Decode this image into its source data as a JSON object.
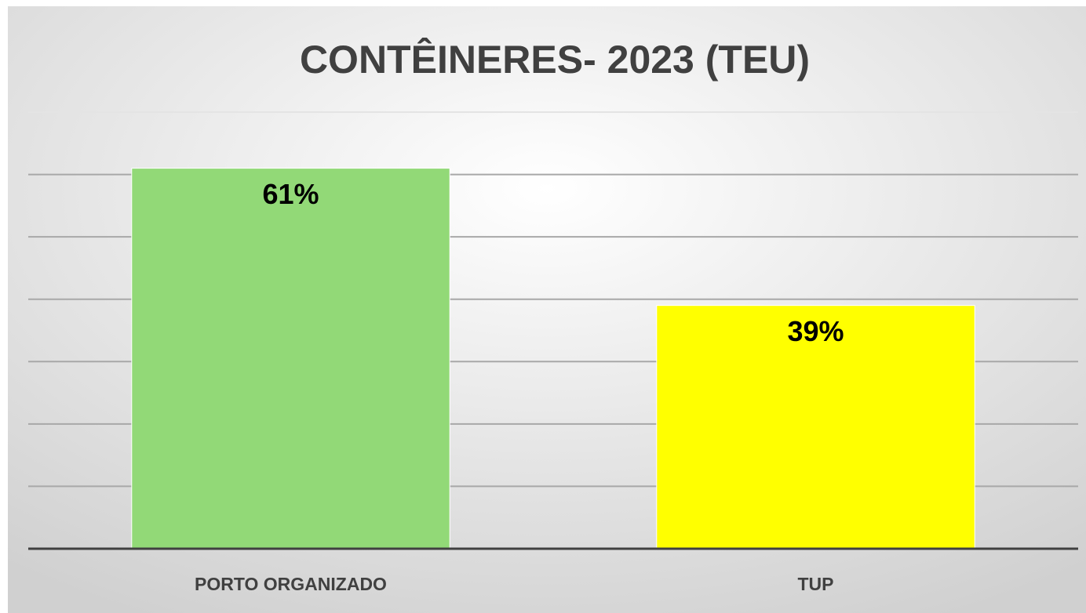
{
  "chart_data": {
    "type": "bar",
    "title": "CONTÊINERES- 2023 (TEU)",
    "categories": [
      "PORTO ORGANIZADO",
      "TUP"
    ],
    "values": [
      61,
      39
    ],
    "value_labels": [
      "61%",
      "39%"
    ],
    "colors": [
      "#92d977",
      "#ffff00"
    ],
    "ylim": [
      0,
      70
    ],
    "yticks": [
      0,
      10,
      20,
      30,
      40,
      50,
      60,
      70
    ],
    "grid": true
  }
}
